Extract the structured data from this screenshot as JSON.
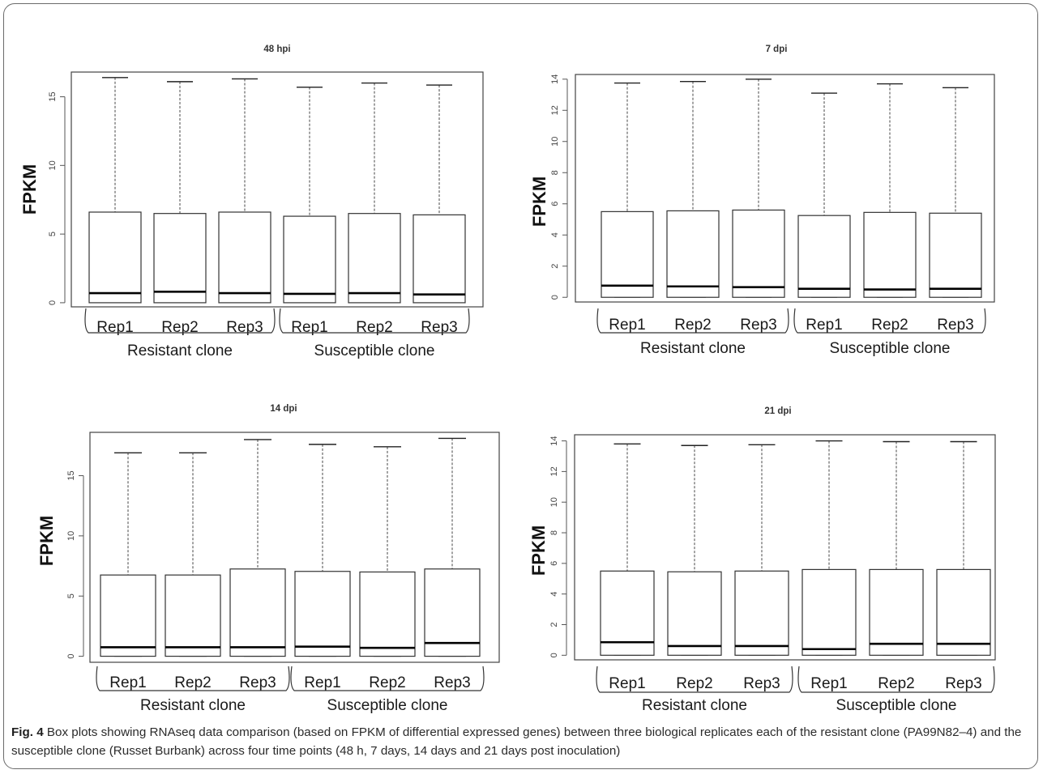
{
  "figure": {
    "ylabel": "FPKM",
    "caption_label": "Fig. 4",
    "caption_text": " Box plots showing RNAseq data comparison (based on FPKM of differential expressed genes) between three biological replicates each of the resistant clone (PA99N82–4) and the susceptible clone (Russet Burbank) across four time points (48 h, 7 days, 14 days and 21 days post inoculation)"
  },
  "chart_data": [
    {
      "type": "box",
      "title": "48 hpi",
      "ylabel": "FPKM",
      "ylim": [
        -0.3,
        16.8
      ],
      "yticks": [
        0,
        5,
        10,
        15
      ],
      "categories": [
        "Rep1",
        "Rep2",
        "Rep3",
        "Rep1",
        "Rep2",
        "Rep3"
      ],
      "groups": [
        {
          "label": "Resistant clone",
          "members": [
            0,
            1,
            2
          ]
        },
        {
          "label": "Susceptible clone",
          "members": [
            3,
            4,
            5
          ]
        }
      ],
      "boxes": [
        {
          "min": 0,
          "q1": 0,
          "median": 0.7,
          "q3": 6.6,
          "max": 16.4
        },
        {
          "min": 0,
          "q1": 0,
          "median": 0.8,
          "q3": 6.5,
          "max": 16.1
        },
        {
          "min": 0,
          "q1": 0,
          "median": 0.7,
          "q3": 6.6,
          "max": 16.3
        },
        {
          "min": 0,
          "q1": 0,
          "median": 0.65,
          "q3": 6.3,
          "max": 15.7
        },
        {
          "min": 0,
          "q1": 0,
          "median": 0.7,
          "q3": 6.5,
          "max": 16.0
        },
        {
          "min": 0,
          "q1": 0,
          "median": 0.6,
          "q3": 6.4,
          "max": 15.85
        }
      ]
    },
    {
      "type": "box",
      "title": "7 dpi",
      "ylabel": "FPKM",
      "ylim": [
        -0.3,
        14.3
      ],
      "yticks": [
        0,
        2,
        4,
        6,
        8,
        10,
        12,
        14
      ],
      "categories": [
        "Rep1",
        "Rep2",
        "Rep3",
        "Rep1",
        "Rep2",
        "Rep3"
      ],
      "groups": [
        {
          "label": "Resistant clone",
          "members": [
            0,
            1,
            2
          ]
        },
        {
          "label": "Susceptible clone",
          "members": [
            3,
            4,
            5
          ]
        }
      ],
      "boxes": [
        {
          "min": 0,
          "q1": 0,
          "median": 0.75,
          "q3": 5.5,
          "max": 13.75
        },
        {
          "min": 0,
          "q1": 0,
          "median": 0.7,
          "q3": 5.55,
          "max": 13.85
        },
        {
          "min": 0,
          "q1": 0,
          "median": 0.65,
          "q3": 5.6,
          "max": 14.0
        },
        {
          "min": 0,
          "q1": 0,
          "median": 0.55,
          "q3": 5.25,
          "max": 13.1
        },
        {
          "min": 0,
          "q1": 0,
          "median": 0.5,
          "q3": 5.45,
          "max": 13.7
        },
        {
          "min": 0,
          "q1": 0,
          "median": 0.55,
          "q3": 5.4,
          "max": 13.45
        }
      ]
    },
    {
      "type": "box",
      "title": "14 dpi",
      "ylabel": "FPKM",
      "ylim": [
        -0.5,
        18.6
      ],
      "yticks": [
        0,
        5,
        10,
        15
      ],
      "categories": [
        "Rep1",
        "Rep2",
        "Rep3",
        "Rep1",
        "Rep2",
        "Rep3"
      ],
      "groups": [
        {
          "label": "Resistant clone",
          "members": [
            0,
            1,
            2
          ]
        },
        {
          "label": "Susceptible clone",
          "members": [
            3,
            4,
            5
          ]
        }
      ],
      "boxes": [
        {
          "min": 0,
          "q1": 0,
          "median": 0.75,
          "q3": 6.75,
          "max": 16.9
        },
        {
          "min": 0,
          "q1": 0,
          "median": 0.75,
          "q3": 6.75,
          "max": 16.9
        },
        {
          "min": 0,
          "q1": 0,
          "median": 0.75,
          "q3": 7.25,
          "max": 18.0
        },
        {
          "min": 0,
          "q1": 0,
          "median": 0.8,
          "q3": 7.05,
          "max": 17.6
        },
        {
          "min": 0,
          "q1": 0,
          "median": 0.7,
          "q3": 7.0,
          "max": 17.4
        },
        {
          "min": 0,
          "q1": 0,
          "median": 1.1,
          "q3": 7.25,
          "max": 18.1
        }
      ]
    },
    {
      "type": "box",
      "title": "21 dpi",
      "ylabel": "FPKM",
      "ylim": [
        -0.3,
        14.4
      ],
      "yticks": [
        0,
        2,
        4,
        6,
        8,
        10,
        12,
        14
      ],
      "categories": [
        "Rep1",
        "Rep2",
        "Rep3",
        "Rep1",
        "Rep2",
        "Rep3"
      ],
      "groups": [
        {
          "label": "Resistant clone",
          "members": [
            0,
            1,
            2
          ]
        },
        {
          "label": "Susceptible clone",
          "members": [
            3,
            4,
            5
          ]
        }
      ],
      "boxes": [
        {
          "min": 0,
          "q1": 0,
          "median": 0.85,
          "q3": 5.5,
          "max": 13.8
        },
        {
          "min": 0,
          "q1": 0,
          "median": 0.6,
          "q3": 5.45,
          "max": 13.7
        },
        {
          "min": 0,
          "q1": 0,
          "median": 0.6,
          "q3": 5.5,
          "max": 13.75
        },
        {
          "min": 0,
          "q1": 0,
          "median": 0.4,
          "q3": 5.6,
          "max": 14.0
        },
        {
          "min": 0,
          "q1": 0,
          "median": 0.75,
          "q3": 5.6,
          "max": 13.95
        },
        {
          "min": 0,
          "q1": 0,
          "median": 0.75,
          "q3": 5.6,
          "max": 13.95
        }
      ]
    }
  ]
}
